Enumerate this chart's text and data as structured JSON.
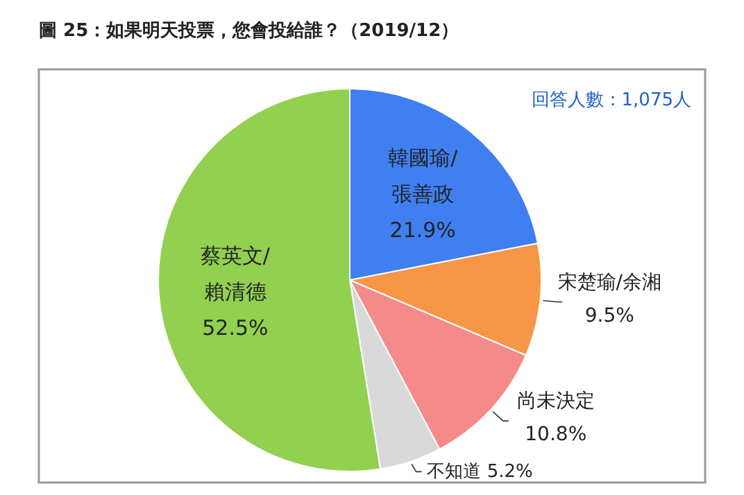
{
  "chart_data": {
    "type": "pie",
    "title": "圖 25：如果明天投票，您會投給誰？（2019/12）",
    "annotations": [
      "回答人數：1,075人"
    ],
    "categories": [
      "韓國瑜/張善政",
      "宋楚瑜/余湘",
      "尚未決定",
      "不知道",
      "蔡英文/賴清德"
    ],
    "values": [
      21.9,
      9.5,
      10.8,
      5.2,
      52.5
    ],
    "value_labels": [
      "21.9%",
      "9.5%",
      "10.8%",
      "5.2%",
      "52.5%"
    ],
    "colors": [
      "#3f7ff0",
      "#f79646",
      "#f58a8a",
      "#d9d9d9",
      "#92d050"
    ]
  }
}
